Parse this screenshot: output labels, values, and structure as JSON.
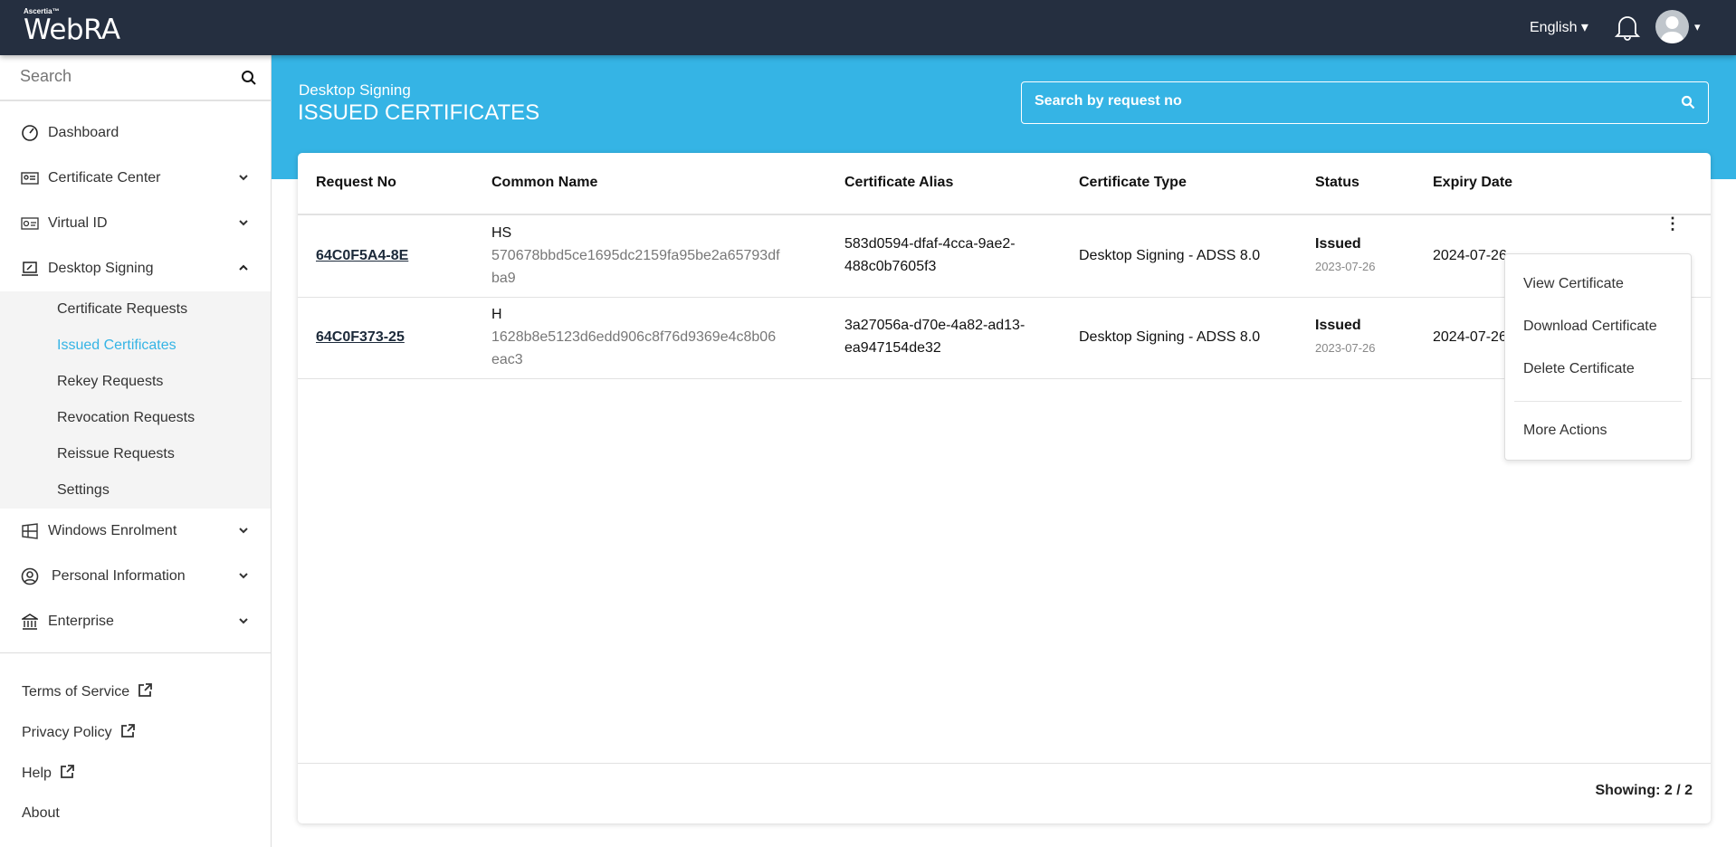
{
  "topbar": {
    "brand_small": "Ascertia™",
    "brand": "WebRA",
    "language": "English ▾",
    "avatar_caret": "▾"
  },
  "sidebar": {
    "search_placeholder": "Search",
    "items": [
      {
        "label": "Dashboard",
        "icon": "dashboard-icon"
      },
      {
        "label": "Certificate Center",
        "icon": "certificate-icon"
      },
      {
        "label": "Virtual ID",
        "icon": "id-card-icon"
      },
      {
        "label": "Desktop Signing",
        "icon": "desktop-signing-icon"
      },
      {
        "label": "Windows Enrolment",
        "icon": "windows-icon"
      },
      {
        "label": "Personal Information",
        "icon": "user-circle-icon"
      },
      {
        "label": "Enterprise",
        "icon": "bank-icon"
      }
    ],
    "submenu": [
      "Certificate Requests",
      "Issued Certificates",
      "Rekey Requests",
      "Revocation Requests",
      "Reissue Requests",
      "Settings"
    ],
    "active_sub": "Issued Certificates",
    "footer": [
      "Terms of Service",
      "Privacy Policy",
      "Help",
      "About"
    ]
  },
  "page": {
    "breadcrumb": "Desktop Signing",
    "title": "ISSUED CERTIFICATES",
    "search_placeholder": "Search by request no"
  },
  "table": {
    "headers": [
      "Request No",
      "Common Name",
      "Certificate Alias",
      "Certificate Type",
      "Status",
      "Expiry Date"
    ],
    "rows": [
      {
        "request_no": "64C0F5A4-8E",
        "cn_name": "HS",
        "cn_hash": "570678bbd5ce1695dc2159fa95be2a65793dfba9",
        "alias": "583d0594-dfaf-4cca-9ae2-488c0b7605f3",
        "type": "Desktop Signing - ADSS 8.0",
        "status": "Issued",
        "status_date": "2023-07-26",
        "expiry": "2024-07-26"
      },
      {
        "request_no": "64C0F373-25",
        "cn_name": "H",
        "cn_hash": "1628b8e5123d6edd906c8f76d9369e4c8b06eac3",
        "alias": "3a27056a-d70e-4a82-ad13-ea947154de32",
        "type": "Desktop Signing - ADSS 8.0",
        "status": "Issued",
        "status_date": "2023-07-26",
        "expiry": "2024-07-26"
      }
    ],
    "showing": "Showing:  2 / 2"
  },
  "context_menu": {
    "items": [
      "View Certificate",
      "Download Certificate",
      "Delete Certificate",
      "More Actions"
    ]
  },
  "colors": {
    "topbar": "#252f40",
    "accent": "#35b4e5"
  }
}
